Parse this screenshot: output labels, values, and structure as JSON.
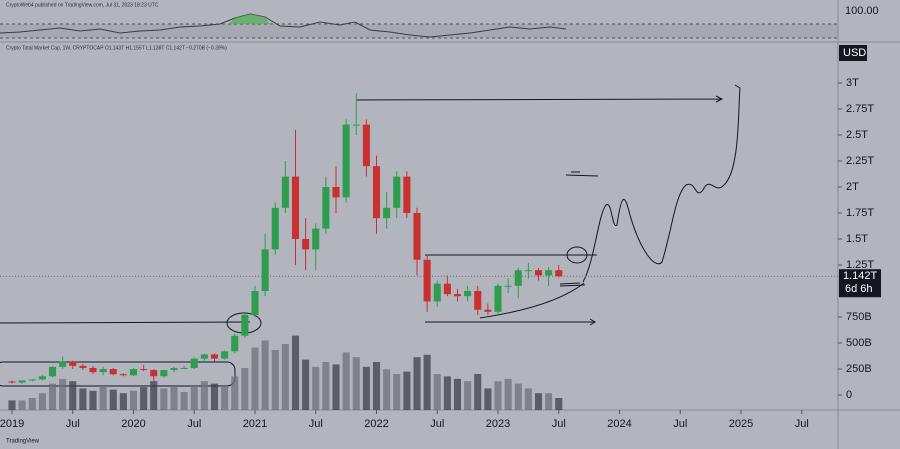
{
  "chart_data": {
    "type": "candlestick",
    "header": "CryptoWeb4 published on TradingView.com, Jul 31, 2023 18:23 UTC",
    "legend": "Crypto Total Market Cap, 1W, CRYPTOCAP  O1.143T  H1.155T  L1.138T  C1.142T  −0.270B (−0.39%)",
    "currency": "USD",
    "rsi_label": "100.00",
    "last_price_label": "1.142T",
    "countdown": "6d 6h",
    "watermark": "TradingView",
    "up_color": "#2e9e4e",
    "down_color": "#c8312f",
    "x": [
      "2019-01",
      "2019-02",
      "2019-03",
      "2019-04",
      "2019-05",
      "2019-06",
      "2019-07",
      "2019-08",
      "2019-09",
      "2019-10",
      "2019-11",
      "2019-12",
      "2020-01",
      "2020-02",
      "2020-03",
      "2020-04",
      "2020-05",
      "2020-06",
      "2020-07",
      "2020-08",
      "2020-09",
      "2020-10",
      "2020-11",
      "2020-12",
      "2021-01",
      "2021-02",
      "2021-03",
      "2021-04",
      "2021-05",
      "2021-06",
      "2021-07",
      "2021-08",
      "2021-09",
      "2021-10",
      "2021-11",
      "2021-12",
      "2022-01",
      "2022-02",
      "2022-03",
      "2022-04",
      "2022-05",
      "2022-06",
      "2022-07",
      "2022-08",
      "2022-09",
      "2022-10",
      "2022-11",
      "2022-12",
      "2023-01",
      "2023-02",
      "2023-03",
      "2023-04",
      "2023-05",
      "2023-06",
      "2023-07"
    ],
    "ohlc": [
      [
        0.13,
        0.14,
        0.11,
        0.12
      ],
      [
        0.12,
        0.14,
        0.11,
        0.14
      ],
      [
        0.14,
        0.15,
        0.13,
        0.15
      ],
      [
        0.15,
        0.19,
        0.14,
        0.18
      ],
      [
        0.18,
        0.28,
        0.17,
        0.27
      ],
      [
        0.27,
        0.37,
        0.25,
        0.32
      ],
      [
        0.32,
        0.33,
        0.25,
        0.28
      ],
      [
        0.28,
        0.3,
        0.24,
        0.26
      ],
      [
        0.26,
        0.28,
        0.2,
        0.22
      ],
      [
        0.22,
        0.27,
        0.19,
        0.25
      ],
      [
        0.25,
        0.26,
        0.19,
        0.2
      ],
      [
        0.2,
        0.21,
        0.18,
        0.19
      ],
      [
        0.19,
        0.26,
        0.18,
        0.25
      ],
      [
        0.25,
        0.29,
        0.23,
        0.24
      ],
      [
        0.24,
        0.25,
        0.13,
        0.18
      ],
      [
        0.18,
        0.24,
        0.17,
        0.24
      ],
      [
        0.24,
        0.27,
        0.22,
        0.26
      ],
      [
        0.26,
        0.28,
        0.25,
        0.26
      ],
      [
        0.26,
        0.36,
        0.25,
        0.35
      ],
      [
        0.35,
        0.4,
        0.33,
        0.39
      ],
      [
        0.39,
        0.4,
        0.32,
        0.35
      ],
      [
        0.35,
        0.43,
        0.34,
        0.42
      ],
      [
        0.42,
        0.59,
        0.4,
        0.57
      ],
      [
        0.57,
        0.78,
        0.55,
        0.77
      ],
      [
        0.77,
        1.05,
        0.75,
        1.0
      ],
      [
        1.0,
        1.55,
        0.95,
        1.4
      ],
      [
        1.4,
        1.85,
        1.35,
        1.8
      ],
      [
        1.8,
        2.25,
        1.75,
        2.1
      ],
      [
        2.1,
        2.55,
        1.25,
        1.5
      ],
      [
        1.5,
        1.7,
        1.2,
        1.4
      ],
      [
        1.4,
        1.65,
        1.2,
        1.6
      ],
      [
        1.6,
        2.1,
        1.55,
        2.0
      ],
      [
        2.0,
        2.2,
        1.75,
        1.9
      ],
      [
        1.9,
        2.65,
        1.85,
        2.6
      ],
      [
        2.6,
        2.9,
        2.5,
        2.6
      ],
      [
        2.6,
        2.65,
        2.1,
        2.2
      ],
      [
        2.2,
        2.3,
        1.55,
        1.7
      ],
      [
        1.7,
        1.95,
        1.6,
        1.8
      ],
      [
        1.8,
        2.15,
        1.7,
        2.1
      ],
      [
        2.1,
        2.15,
        1.7,
        1.75
      ],
      [
        1.75,
        1.8,
        1.15,
        1.3
      ],
      [
        1.3,
        1.35,
        0.8,
        0.9
      ],
      [
        0.9,
        1.1,
        0.85,
        1.07
      ],
      [
        1.07,
        1.15,
        0.95,
        0.97
      ],
      [
        0.97,
        1.02,
        0.9,
        0.95
      ],
      [
        0.95,
        1.05,
        0.9,
        1.0
      ],
      [
        1.0,
        1.05,
        0.77,
        0.82
      ],
      [
        0.82,
        0.88,
        0.77,
        0.8
      ],
      [
        0.8,
        1.07,
        0.78,
        1.05
      ],
      [
        1.05,
        1.12,
        0.98,
        1.05
      ],
      [
        1.05,
        1.22,
        0.93,
        1.2
      ],
      [
        1.2,
        1.27,
        1.12,
        1.2
      ],
      [
        1.2,
        1.22,
        1.1,
        1.15
      ],
      [
        1.15,
        1.23,
        1.05,
        1.2
      ],
      [
        1.2,
        1.25,
        1.13,
        1.142
      ]
    ],
    "volume": [
      8,
      8,
      10,
      14,
      22,
      26,
      24,
      18,
      16,
      20,
      17,
      14,
      16,
      19,
      24,
      18,
      19,
      15,
      20,
      24,
      22,
      20,
      28,
      35,
      52,
      58,
      50,
      55,
      62,
      42,
      36,
      40,
      38,
      48,
      44,
      36,
      40,
      34,
      30,
      32,
      44,
      46,
      30,
      28,
      26,
      24,
      30,
      18,
      24,
      26,
      22,
      18,
      14,
      14,
      10
    ],
    "volume_lim": [
      0,
      100
    ],
    "ylim": [
      -0.144,
      3.365
    ],
    "yticks": [
      0,
      {
        "value": 0.25,
        "label": "250B"
      },
      {
        "value": 0.5,
        "label": "500B"
      },
      {
        "value": 0.75,
        "label": "750B"
      },
      {
        "value": 1.25,
        "label": "1.25T"
      },
      {
        "value": 1.5,
        "label": "1.5T"
      },
      {
        "value": 1.75,
        "label": "1.75T"
      },
      {
        "value": 2,
        "label": "2T"
      },
      {
        "value": 2.25,
        "label": "2.25T"
      },
      {
        "value": 2.5,
        "label": "2.5T"
      },
      {
        "value": 2.75,
        "label": "2.75T"
      },
      {
        "value": 3,
        "label": "3T"
      }
    ],
    "xticks": [
      {
        "value": "2019-01",
        "label": "2019"
      },
      {
        "value": "2019-07",
        "label": "Jul"
      },
      {
        "value": "2020-01",
        "label": "2020"
      },
      {
        "value": "2020-07",
        "label": "Jul"
      },
      {
        "value": "2021-01",
        "label": "2021"
      },
      {
        "value": "2021-07",
        "label": "Jul"
      },
      {
        "value": "2022-01",
        "label": "2022"
      },
      {
        "value": "2022-07",
        "label": "Jul"
      },
      {
        "value": "2023-01",
        "label": "2023"
      },
      {
        "value": "2023-07",
        "label": "Jul"
      },
      {
        "value": "2024-01",
        "label": "2024"
      },
      {
        "value": "2024-07",
        "label": "Jul"
      },
      {
        "value": "2025-01",
        "label": "2025"
      },
      {
        "value": "2025-07",
        "label": "Jul"
      }
    ]
  }
}
